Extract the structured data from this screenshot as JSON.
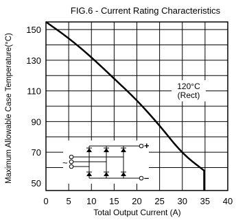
{
  "chart_data": {
    "type": "line",
    "title": "FIG.6 - Current Rating Characteristics",
    "xlabel": "Total Output Current (A)",
    "ylabel": "Maximum Allowable Case Temperature(°C)",
    "xlim": [
      0,
      40
    ],
    "ylim": [
      45,
      155
    ],
    "x_ticks": [
      0,
      5,
      10,
      15,
      20,
      25,
      30,
      35,
      40
    ],
    "y_ticks": [
      50,
      70,
      90,
      110,
      130,
      150
    ],
    "x_tick_labels": [
      "0",
      "5",
      "10",
      "15",
      "20",
      "25",
      "30",
      "35",
      "40"
    ],
    "y_tick_labels": [
      "50",
      "70",
      "90",
      "110",
      "130",
      "150"
    ],
    "grid": true,
    "series": [
      {
        "x": [
          0,
          5,
          10,
          15,
          20,
          25,
          30,
          34.8,
          34.8
        ],
        "y": [
          155,
          144.5,
          132,
          118,
          104,
          87.5,
          69,
          58,
          45
        ]
      }
    ],
    "annotations": [
      {
        "text_line1": "120°C",
        "text_line2": "(Rect)",
        "x": 29,
        "y": 111
      }
    ],
    "inset": {
      "description": "bridge rectifier schematic",
      "tilde": "~",
      "plus": "+",
      "minus": "–"
    }
  }
}
